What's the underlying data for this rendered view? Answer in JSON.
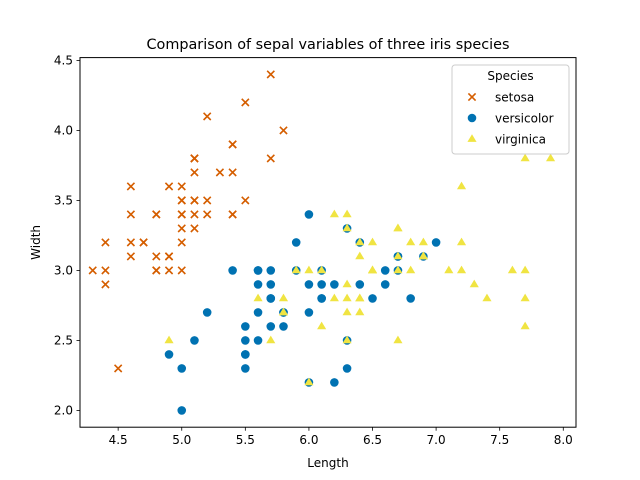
{
  "chart_data": {
    "type": "scatter",
    "title": "Comparison of sepal variables of three iris species",
    "xlabel": "Length",
    "ylabel": "Width",
    "xlim": [
      4.2,
      8.1
    ],
    "ylim": [
      1.88,
      4.52
    ],
    "xticks": [
      "4.5",
      "5.0",
      "5.5",
      "6.0",
      "6.5",
      "7.0",
      "7.5",
      "8.0"
    ],
    "yticks": [
      "2.0",
      "2.5",
      "3.0",
      "3.5",
      "4.0",
      "4.5"
    ],
    "grid": false,
    "legend": {
      "title": "Species",
      "placement": "top-right"
    },
    "series": [
      {
        "name": "setosa",
        "marker": "x",
        "color": "#d55e00",
        "points": [
          [
            5.1,
            3.5
          ],
          [
            4.9,
            3.0
          ],
          [
            4.7,
            3.2
          ],
          [
            4.6,
            3.1
          ],
          [
            5.0,
            3.6
          ],
          [
            5.4,
            3.9
          ],
          [
            4.6,
            3.4
          ],
          [
            5.0,
            3.4
          ],
          [
            4.4,
            2.9
          ],
          [
            4.9,
            3.1
          ],
          [
            5.4,
            3.7
          ],
          [
            4.8,
            3.4
          ],
          [
            4.8,
            3.0
          ],
          [
            4.3,
            3.0
          ],
          [
            5.8,
            4.0
          ],
          [
            5.7,
            4.4
          ],
          [
            5.4,
            3.9
          ],
          [
            5.1,
            3.5
          ],
          [
            5.7,
            3.8
          ],
          [
            5.1,
            3.8
          ],
          [
            5.4,
            3.4
          ],
          [
            5.1,
            3.7
          ],
          [
            4.6,
            3.6
          ],
          [
            5.1,
            3.3
          ],
          [
            4.8,
            3.4
          ],
          [
            5.0,
            3.0
          ],
          [
            5.0,
            3.4
          ],
          [
            5.2,
            3.5
          ],
          [
            5.2,
            3.4
          ],
          [
            4.7,
            3.2
          ],
          [
            4.8,
            3.1
          ],
          [
            5.4,
            3.4
          ],
          [
            5.2,
            4.1
          ],
          [
            5.5,
            4.2
          ],
          [
            4.9,
            3.1
          ],
          [
            5.0,
            3.2
          ],
          [
            5.5,
            3.5
          ],
          [
            4.9,
            3.6
          ],
          [
            4.4,
            3.0
          ],
          [
            5.1,
            3.4
          ],
          [
            5.0,
            3.5
          ],
          [
            4.5,
            2.3
          ],
          [
            4.4,
            3.2
          ],
          [
            5.0,
            3.5
          ],
          [
            5.1,
            3.8
          ],
          [
            4.8,
            3.0
          ],
          [
            5.1,
            3.8
          ],
          [
            4.6,
            3.2
          ],
          [
            5.3,
            3.7
          ],
          [
            5.0,
            3.3
          ]
        ]
      },
      {
        "name": "versicolor",
        "marker": "circle",
        "color": "#0072b2",
        "points": [
          [
            7.0,
            3.2
          ],
          [
            6.4,
            3.2
          ],
          [
            6.9,
            3.1
          ],
          [
            5.5,
            2.3
          ],
          [
            6.5,
            2.8
          ],
          [
            5.7,
            2.8
          ],
          [
            6.3,
            3.3
          ],
          [
            4.9,
            2.4
          ],
          [
            6.6,
            2.9
          ],
          [
            5.2,
            2.7
          ],
          [
            5.0,
            2.0
          ],
          [
            5.9,
            3.0
          ],
          [
            6.0,
            2.2
          ],
          [
            6.1,
            2.9
          ],
          [
            5.6,
            2.9
          ],
          [
            6.7,
            3.1
          ],
          [
            5.6,
            3.0
          ],
          [
            5.8,
            2.7
          ],
          [
            6.2,
            2.2
          ],
          [
            5.6,
            2.5
          ],
          [
            5.9,
            3.2
          ],
          [
            6.1,
            2.8
          ],
          [
            6.3,
            2.5
          ],
          [
            6.1,
            2.8
          ],
          [
            6.4,
            2.9
          ],
          [
            6.6,
            3.0
          ],
          [
            6.8,
            2.8
          ],
          [
            6.7,
            3.0
          ],
          [
            6.0,
            2.9
          ],
          [
            5.7,
            2.6
          ],
          [
            5.5,
            2.4
          ],
          [
            5.5,
            2.4
          ],
          [
            5.8,
            2.7
          ],
          [
            6.0,
            2.7
          ],
          [
            5.4,
            3.0
          ],
          [
            6.0,
            3.4
          ],
          [
            6.7,
            3.1
          ],
          [
            6.3,
            2.3
          ],
          [
            5.6,
            3.0
          ],
          [
            5.5,
            2.5
          ],
          [
            5.5,
            2.6
          ],
          [
            6.1,
            3.0
          ],
          [
            5.8,
            2.6
          ],
          [
            5.0,
            2.3
          ],
          [
            5.6,
            2.7
          ],
          [
            5.7,
            3.0
          ],
          [
            5.7,
            2.9
          ],
          [
            6.2,
            2.9
          ],
          [
            5.1,
            2.5
          ],
          [
            5.7,
            2.8
          ]
        ]
      },
      {
        "name": "virginica",
        "marker": "triangle",
        "color": "#f0e442",
        "points": [
          [
            6.3,
            3.3
          ],
          [
            5.8,
            2.7
          ],
          [
            7.1,
            3.0
          ],
          [
            6.3,
            2.9
          ],
          [
            6.5,
            3.0
          ],
          [
            7.6,
            3.0
          ],
          [
            4.9,
            2.5
          ],
          [
            7.3,
            2.9
          ],
          [
            6.7,
            2.5
          ],
          [
            7.2,
            3.6
          ],
          [
            6.5,
            3.2
          ],
          [
            6.4,
            2.7
          ],
          [
            6.8,
            3.0
          ],
          [
            5.7,
            2.5
          ],
          [
            5.8,
            2.8
          ],
          [
            6.4,
            3.2
          ],
          [
            6.5,
            3.0
          ],
          [
            7.7,
            3.8
          ],
          [
            7.7,
            2.6
          ],
          [
            6.0,
            2.2
          ],
          [
            6.9,
            3.2
          ],
          [
            5.6,
            2.8
          ],
          [
            7.7,
            2.8
          ],
          [
            6.3,
            2.7
          ],
          [
            6.7,
            3.3
          ],
          [
            7.2,
            3.2
          ],
          [
            6.2,
            2.8
          ],
          [
            6.1,
            3.0
          ],
          [
            6.4,
            2.8
          ],
          [
            7.2,
            3.0
          ],
          [
            7.4,
            2.8
          ],
          [
            7.9,
            3.8
          ],
          [
            6.4,
            2.8
          ],
          [
            6.3,
            2.8
          ],
          [
            6.1,
            2.6
          ],
          [
            7.7,
            3.0
          ],
          [
            6.3,
            3.4
          ],
          [
            6.4,
            3.1
          ],
          [
            6.0,
            3.0
          ],
          [
            6.9,
            3.1
          ],
          [
            6.7,
            3.1
          ],
          [
            6.9,
            3.1
          ],
          [
            5.8,
            2.7
          ],
          [
            6.8,
            3.2
          ],
          [
            6.7,
            3.3
          ],
          [
            6.7,
            3.0
          ],
          [
            6.3,
            2.5
          ],
          [
            6.5,
            3.0
          ],
          [
            6.2,
            3.4
          ],
          [
            5.9,
            3.0
          ]
        ]
      }
    ]
  }
}
